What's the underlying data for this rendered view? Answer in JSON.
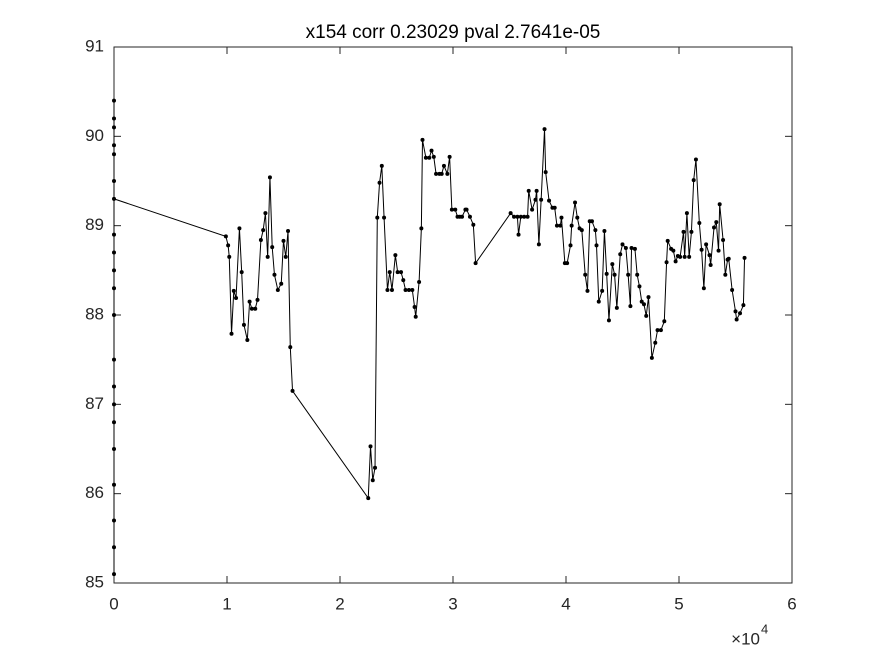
{
  "chart_data": {
    "type": "line",
    "title": "x154 corr 0.23029 pval 2.7641e-05",
    "color": "#000000",
    "marker": "circle",
    "x_multiplier": {
      "base": "×10",
      "exponent": "4"
    },
    "xlim": [
      0,
      60000
    ],
    "xticks": [
      0,
      {
        "value": 10000,
        "label": "1"
      },
      {
        "value": 20000,
        "label": "2"
      },
      {
        "value": 30000,
        "label": "3"
      },
      {
        "value": 40000,
        "label": "4"
      },
      {
        "value": 50000,
        "label": "5"
      },
      {
        "value": 60000,
        "label": "6"
      }
    ],
    "ylim": [
      85,
      91
    ],
    "yticks": [
      85,
      86,
      87,
      88,
      89,
      90,
      91
    ],
    "grid": false,
    "x": [
      0,
      0,
      0,
      0,
      0,
      0,
      0,
      0,
      0,
      0,
      0,
      0,
      0,
      0,
      0,
      0,
      0,
      0,
      0,
      0,
      0,
      9900,
      10100,
      10200,
      10400,
      10600,
      10800,
      11100,
      11300,
      11500,
      11800,
      12000,
      12200,
      12500,
      12700,
      13000,
      13200,
      13400,
      13600,
      13800,
      14000,
      14200,
      14500,
      14800,
      15000,
      15200,
      15400,
      15600,
      15800,
      22500,
      22700,
      22900,
      23100,
      23300,
      23500,
      23700,
      23900,
      24200,
      24400,
      24600,
      24900,
      25100,
      25400,
      25600,
      25800,
      26100,
      26400,
      26600,
      26700,
      27000,
      27200,
      27300,
      27600,
      27900,
      28100,
      28300,
      28500,
      28800,
      29000,
      29200,
      29500,
      29700,
      29900,
      30200,
      30400,
      30600,
      30800,
      31100,
      31200,
      31500,
      31800,
      32000,
      35100,
      35400,
      35700,
      35800,
      36000,
      36300,
      36600,
      36700,
      37000,
      37300,
      37400,
      37600,
      37800,
      38100,
      38200,
      38500,
      38800,
      39000,
      39200,
      39500,
      39600,
      39900,
      40100,
      40400,
      40500,
      40800,
      41000,
      41200,
      41400,
      41700,
      41900,
      42100,
      42300,
      42600,
      42700,
      42900,
      43200,
      43400,
      43600,
      43800,
      44100,
      44300,
      44500,
      44800,
      45000,
      45300,
      45500,
      45700,
      45800,
      46100,
      46300,
      46500,
      46700,
      46900,
      47100,
      47300,
      47600,
      47900,
      48100,
      48400,
      48700,
      48900,
      49000,
      49300,
      49500,
      49700,
      49900,
      50100,
      50400,
      50500,
      50700,
      50900,
      51100,
      51300,
      51500,
      51800,
      52000,
      52200,
      52400,
      52700,
      52800,
      53100,
      53300,
      53500,
      53600,
      53900,
      54100,
      54300,
      54400,
      54700,
      55000,
      55100,
      55400,
      55700,
      55800
    ],
    "values": [
      90.4,
      89.8,
      90.2,
      88.5,
      89.9,
      87.0,
      88.9,
      86.1,
      88.0,
      85.7,
      87.5,
      85.1,
      86.5,
      88.3,
      85.4,
      87.2,
      89.5,
      86.8,
      90.1,
      88.7,
      89.3,
      88.88,
      88.78,
      88.65,
      87.79,
      88.27,
      88.19,
      88.97,
      88.48,
      87.89,
      87.72,
      88.15,
      88.07,
      88.07,
      88.17,
      88.84,
      88.95,
      89.14,
      88.65,
      89.54,
      88.76,
      88.45,
      88.28,
      88.35,
      88.83,
      88.65,
      88.94,
      87.64,
      87.15,
      85.95,
      86.53,
      86.15,
      86.29,
      89.09,
      89.48,
      89.67,
      89.09,
      88.28,
      88.48,
      88.28,
      88.67,
      88.48,
      88.48,
      88.39,
      88.28,
      88.28,
      88.28,
      88.09,
      87.98,
      88.37,
      88.97,
      89.96,
      89.76,
      89.76,
      89.84,
      89.77,
      89.58,
      89.58,
      89.58,
      89.67,
      89.58,
      89.77,
      89.18,
      89.18,
      89.1,
      89.1,
      89.1,
      89.18,
      89.18,
      89.1,
      89.01,
      88.58,
      89.14,
      89.1,
      89.1,
      88.9,
      89.1,
      89.1,
      89.1,
      89.39,
      89.18,
      89.29,
      89.39,
      88.79,
      89.29,
      90.08,
      89.6,
      89.28,
      89.2,
      89.2,
      89.0,
      89.0,
      89.09,
      88.58,
      88.58,
      88.78,
      89.0,
      89.26,
      89.09,
      88.97,
      88.95,
      88.45,
      88.27,
      89.05,
      89.05,
      88.95,
      88.78,
      88.15,
      88.27,
      88.94,
      88.46,
      87.94,
      88.57,
      88.45,
      88.08,
      88.68,
      88.79,
      88.75,
      88.45,
      88.1,
      88.75,
      88.74,
      88.45,
      88.32,
      88.15,
      88.12,
      87.99,
      88.2,
      87.52,
      87.69,
      87.83,
      87.83,
      87.93,
      88.59,
      88.83,
      88.74,
      88.72,
      88.6,
      88.66,
      88.65,
      88.93,
      88.65,
      89.14,
      88.65,
      88.93,
      89.51,
      89.74,
      89.03,
      88.73,
      88.3,
      88.79,
      88.67,
      88.56,
      88.98,
      89.04,
      88.72,
      89.24,
      88.84,
      88.45,
      88.62,
      88.63,
      88.28,
      88.04,
      87.95,
      88.02,
      88.11,
      88.64
    ]
  }
}
